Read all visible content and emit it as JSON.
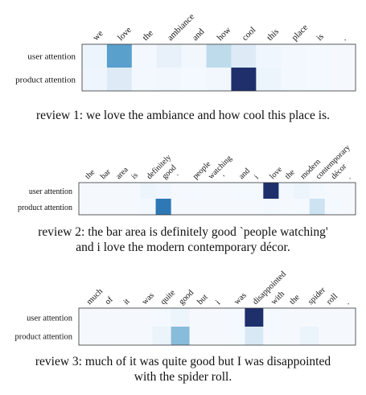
{
  "colors": {
    "low": "#f7fbff",
    "high": "#1e2f6b",
    "frame": "#333333"
  },
  "chart_data": [
    {
      "type": "heatmap",
      "tokens": [
        "we",
        "love",
        "the",
        "ambiance",
        "and",
        "how",
        "cool",
        "this",
        "place",
        "is",
        "."
      ],
      "rows": [
        {
          "label": "user attention",
          "values": [
            0.08,
            0.55,
            0.04,
            0.12,
            0.05,
            0.3,
            0.2,
            0.06,
            0.04,
            0.03,
            0.02
          ]
        },
        {
          "label": "product attention",
          "values": [
            0.07,
            0.2,
            0.04,
            0.05,
            0.03,
            0.05,
            1.0,
            0.08,
            0.04,
            0.03,
            0.02
          ]
        }
      ],
      "caption": [
        "review 1: we love the ambiance and how cool this place is."
      ]
    },
    {
      "type": "heatmap",
      "tokens": [
        "the",
        "bar",
        "area",
        "is",
        "definitely",
        "good",
        "`",
        "people",
        "watching",
        "'",
        "and",
        "i",
        "love",
        "the",
        "modern",
        "contemporary",
        "décor",
        "."
      ],
      "rows": [
        {
          "label": "user attention",
          "values": [
            0.02,
            0.02,
            0.02,
            0.02,
            0.08,
            0.06,
            0.02,
            0.03,
            0.02,
            0.02,
            0.03,
            0.03,
            1.0,
            0.04,
            0.08,
            0.04,
            0.02,
            0.02
          ]
        },
        {
          "label": "product attention",
          "values": [
            0.02,
            0.02,
            0.02,
            0.02,
            0.04,
            0.72,
            0.02,
            0.02,
            0.02,
            0.02,
            0.02,
            0.02,
            0.04,
            0.02,
            0.03,
            0.25,
            0.03,
            0.02
          ]
        }
      ],
      "caption": [
        "review 2: the bar area is definitely good `people watching'",
        "and i love the modern contemporary décor."
      ]
    },
    {
      "type": "heatmap",
      "tokens": [
        "much",
        "of",
        "it",
        "was",
        "quite",
        "good",
        "but",
        "i",
        "was",
        "disappointed",
        "with",
        "the",
        "spider",
        "roll",
        "."
      ],
      "rows": [
        {
          "label": "user attention",
          "values": [
            0.02,
            0.02,
            0.02,
            0.02,
            0.03,
            0.08,
            0.02,
            0.02,
            0.03,
            1.0,
            0.03,
            0.02,
            0.02,
            0.02,
            0.02
          ]
        },
        {
          "label": "product attention",
          "values": [
            0.02,
            0.02,
            0.02,
            0.02,
            0.1,
            0.45,
            0.02,
            0.02,
            0.03,
            0.22,
            0.03,
            0.02,
            0.1,
            0.02,
            0.02
          ]
        }
      ],
      "caption": [
        "review 3: much of it was quite good but I was disappointed",
        "with the spider roll."
      ]
    }
  ]
}
